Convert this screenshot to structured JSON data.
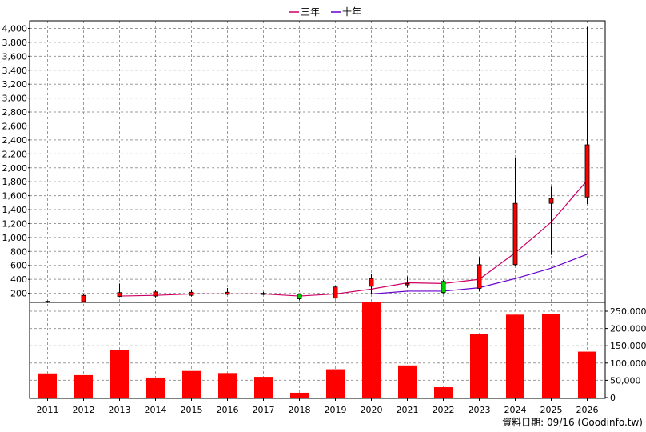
{
  "legend": [
    {
      "name": "三年",
      "color": "#cc0066"
    },
    {
      "name": "十年",
      "color": "#6600cc"
    }
  ],
  "footer": "資料日期: 09/16 (Goodinfo.tw)",
  "colors": {
    "up": "#ff0000",
    "down": "#00cc00",
    "grid": "#9a9a9a"
  },
  "chart_data": {
    "type": "candlestick_with_volume",
    "categories": [
      "2011",
      "2012",
      "2013",
      "2014",
      "2015",
      "2016",
      "2017",
      "2018",
      "2019",
      "2020",
      "2021",
      "2022",
      "2023",
      "2024",
      "2025",
      "2026"
    ],
    "price_axis": {
      "min": 0,
      "max": 4000,
      "ticks": [
        200,
        400,
        600,
        800,
        1000,
        1200,
        1400,
        1600,
        1800,
        2000,
        2200,
        2400,
        2600,
        2800,
        3000,
        3200,
        3400,
        3600,
        3800,
        4000
      ]
    },
    "volume_axis": {
      "min": 0,
      "max": 275000,
      "ticks": [
        0,
        50000,
        100000,
        150000,
        200000,
        250000
      ]
    },
    "candles": [
      {
        "open": 85,
        "close": 75,
        "high": 95,
        "low": 60
      },
      {
        "open": 80,
        "close": 170,
        "high": 190,
        "low": 75
      },
      {
        "open": 155,
        "close": 210,
        "high": 340,
        "low": 145
      },
      {
        "open": 160,
        "close": 220,
        "high": 250,
        "low": 140
      },
      {
        "open": 170,
        "close": 215,
        "high": 255,
        "low": 155
      },
      {
        "open": 185,
        "close": 215,
        "high": 275,
        "low": 175
      },
      {
        "open": 185,
        "close": 200,
        "high": 220,
        "low": 175
      },
      {
        "open": 185,
        "close": 120,
        "high": 190,
        "low": 100
      },
      {
        "open": 130,
        "close": 290,
        "high": 300,
        "low": 120
      },
      {
        "open": 300,
        "close": 410,
        "high": 470,
        "low": 190
      },
      {
        "open": 320,
        "close": 340,
        "high": 440,
        "low": 280
      },
      {
        "open": 370,
        "close": 210,
        "high": 390,
        "low": 200
      },
      {
        "open": 270,
        "close": 610,
        "high": 720,
        "low": 230
      },
      {
        "open": 610,
        "close": 1490,
        "high": 2140,
        "low": 590
      },
      {
        "open": 1490,
        "close": 1560,
        "high": 1730,
        "low": 750
      },
      {
        "open": 1580,
        "close": 2330,
        "high": 4020,
        "low": 1480
      }
    ],
    "series": [
      {
        "name": "三年",
        "values": [
          null,
          null,
          160,
          170,
          190,
          190,
          190,
          160,
          190,
          260,
          350,
          340,
          400,
          780,
          1220,
          1820
        ]
      },
      {
        "name": "十年",
        "values": [
          null,
          null,
          null,
          null,
          null,
          null,
          null,
          null,
          null,
          190,
          230,
          230,
          280,
          410,
          560,
          760
        ]
      }
    ],
    "volume": [
      70000,
      65000,
      137000,
      58000,
      77000,
      71000,
      60000,
      14000,
      82000,
      277000,
      93000,
      30000,
      185000,
      240000,
      242000,
      133000
    ]
  }
}
